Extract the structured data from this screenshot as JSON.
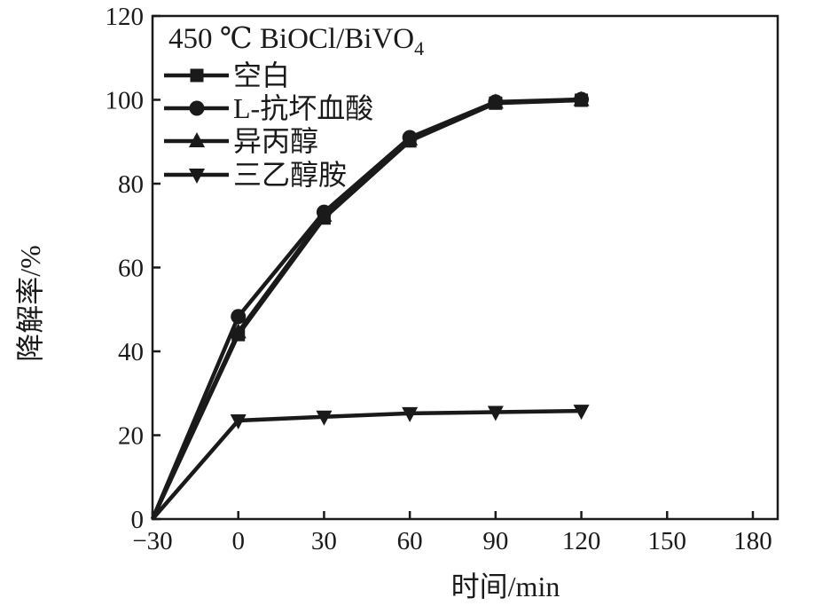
{
  "figure": {
    "background": "#ffffff"
  },
  "chart_data": {
    "type": "line",
    "title": "450 ℃ BiOCl/BiVO₄",
    "title_main": "450 ℃ BiOCl/BiVO",
    "title_sub": "4",
    "xlabel": "时间/min",
    "ylabel": "降解率/%",
    "x": [
      -30,
      0,
      30,
      60,
      90,
      120
    ],
    "xlim": [
      -30,
      189
    ],
    "ylim": [
      0,
      120
    ],
    "x_ticks": [
      -30,
      0,
      30,
      60,
      90,
      120,
      150,
      180
    ],
    "x_tick_labels": [
      "−30",
      "0",
      "30",
      "60",
      "90",
      "120",
      "150",
      "180"
    ],
    "y_ticks": [
      0,
      20,
      40,
      60,
      80,
      100,
      120
    ],
    "y_tick_labels": [
      "0",
      "20",
      "40",
      "60",
      "80",
      "100",
      "120"
    ],
    "grid": false,
    "legend_position": "top-left",
    "line_color": "#1a1a1a",
    "series": [
      {
        "name": "空白",
        "marker": "square",
        "values": [
          0,
          44.0,
          71.8,
          90.2,
          99.2,
          99.9
        ]
      },
      {
        "name": "L-抗坏血酸",
        "marker": "circle",
        "values": [
          0,
          48.3,
          73.2,
          91.0,
          99.5,
          100.1
        ]
      },
      {
        "name": "异丙醇",
        "marker": "triangle-up",
        "values": [
          0,
          44.6,
          72.4,
          90.6,
          99.4,
          100.0
        ]
      },
      {
        "name": "三乙醇胺",
        "marker": "triangle-down",
        "values": [
          0,
          23.5,
          24.4,
          25.2,
          25.5,
          25.8
        ]
      }
    ]
  }
}
